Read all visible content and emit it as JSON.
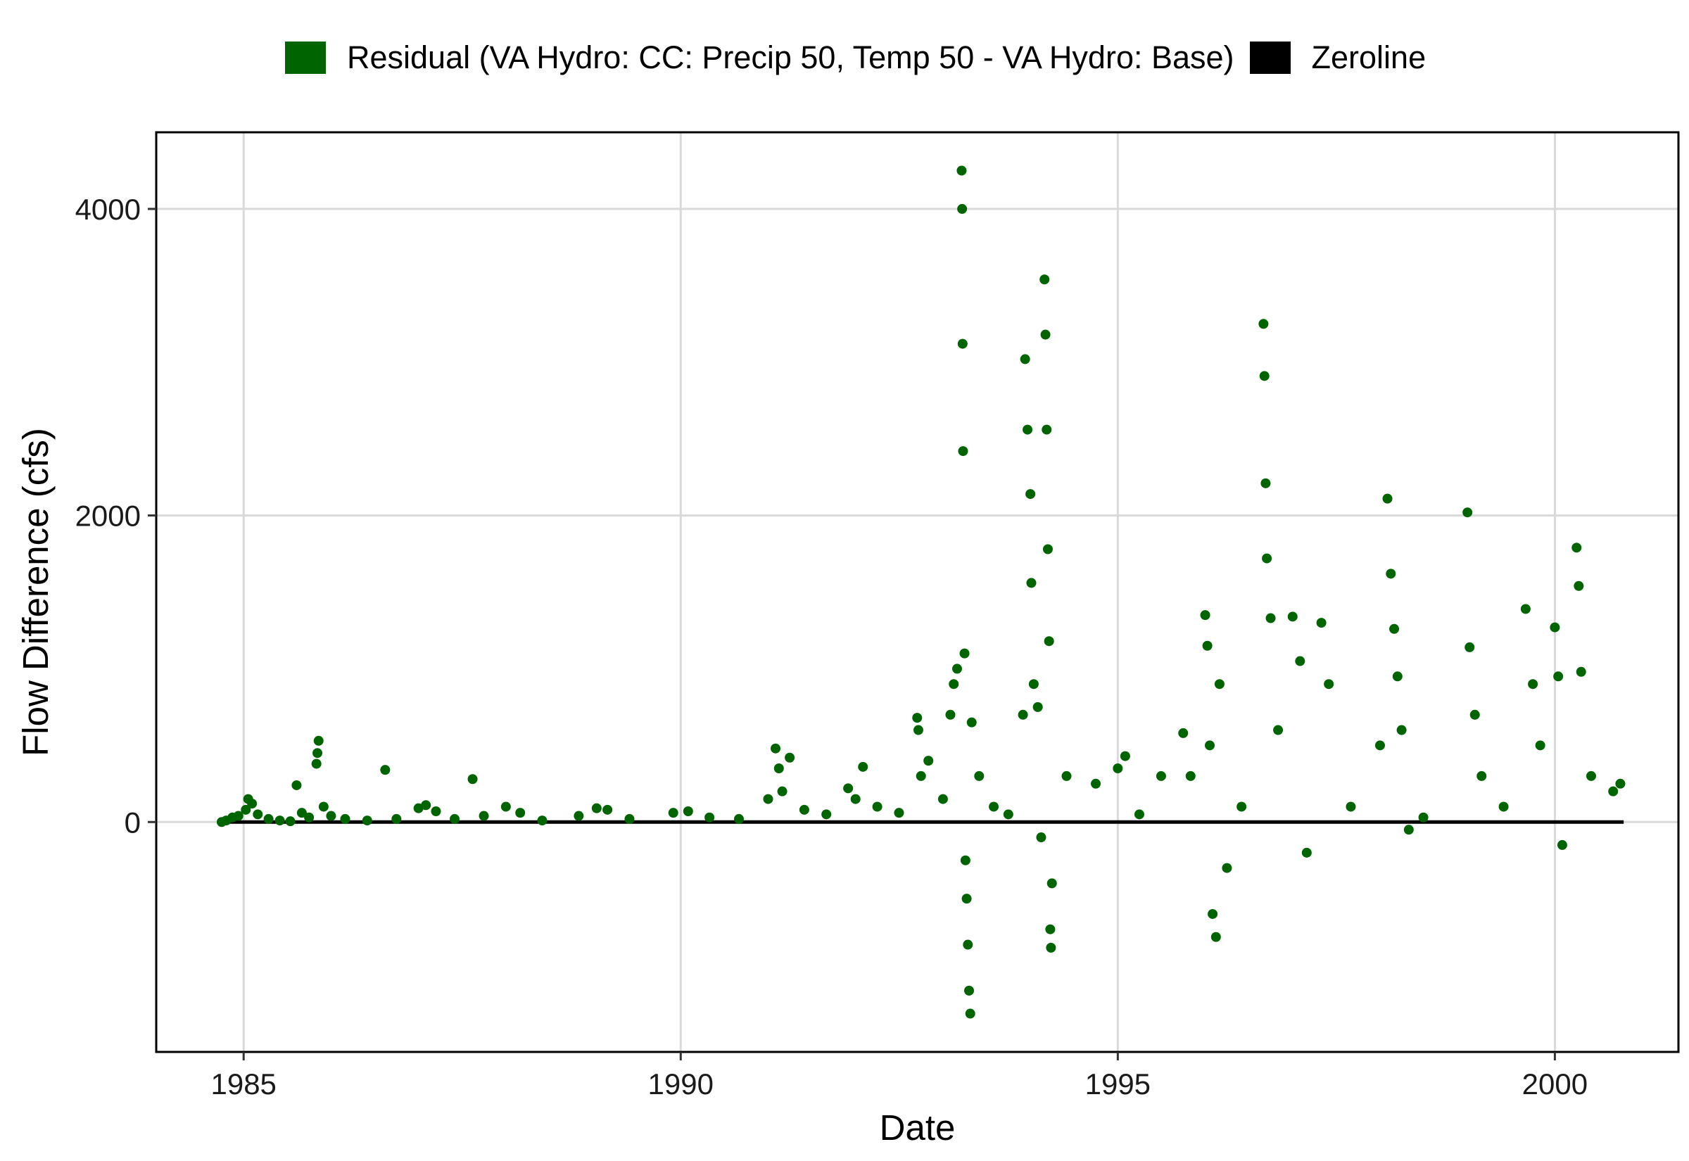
{
  "chart_data": {
    "type": "scatter",
    "title": "",
    "xlabel": "Date",
    "ylabel": "Flow Difference (cfs)",
    "xlim": [
      "1984-01-01",
      "2001-06-01"
    ],
    "ylim": [
      -1500,
      4500
    ],
    "x_ticks": [
      "1985",
      "1990",
      "1995",
      "2000"
    ],
    "y_ticks": [
      0,
      2000,
      4000
    ],
    "grid": true,
    "legend_position": "top",
    "legend": [
      {
        "label": "Residual (VA Hydro: CC: Precip 50, Temp 50 - VA Hydro: Base)",
        "color": "#006400"
      },
      {
        "label": "Zeroline",
        "color": "#000000"
      }
    ],
    "series": [
      {
        "name": "Residual (VA Hydro: CC: Precip 50, Temp 50 - VA Hydro: Base)",
        "type": "scatter",
        "color": "#006400",
        "points": [
          [
            "1984-10-01",
            0
          ],
          [
            "1984-10-20",
            10
          ],
          [
            "1984-11-15",
            30
          ],
          [
            "1984-12-10",
            40
          ],
          [
            "1985-01-10",
            80
          ],
          [
            "1985-01-20",
            150
          ],
          [
            "1985-02-05",
            120
          ],
          [
            "1985-03-01",
            50
          ],
          [
            "1985-04-15",
            20
          ],
          [
            "1985-06-01",
            10
          ],
          [
            "1985-07-15",
            5
          ],
          [
            "1985-08-10",
            240
          ],
          [
            "1985-09-01",
            60
          ],
          [
            "1985-10-01",
            30
          ],
          [
            "1985-11-01",
            380
          ],
          [
            "1985-11-05",
            450
          ],
          [
            "1985-11-10",
            530
          ],
          [
            "1985-12-01",
            100
          ],
          [
            "1986-01-01",
            40
          ],
          [
            "1986-03-01",
            20
          ],
          [
            "1986-06-01",
            10
          ],
          [
            "1986-08-15",
            340
          ],
          [
            "1986-10-01",
            20
          ],
          [
            "1987-01-01",
            90
          ],
          [
            "1987-02-01",
            110
          ],
          [
            "1987-03-15",
            70
          ],
          [
            "1987-06-01",
            20
          ],
          [
            "1987-08-15",
            280
          ],
          [
            "1987-10-01",
            40
          ],
          [
            "1988-01-01",
            100
          ],
          [
            "1988-03-01",
            60
          ],
          [
            "1988-06-01",
            10
          ],
          [
            "1988-11-01",
            40
          ],
          [
            "1989-01-15",
            90
          ],
          [
            "1989-03-01",
            80
          ],
          [
            "1989-06-01",
            20
          ],
          [
            "1989-12-01",
            60
          ],
          [
            "1990-02-01",
            70
          ],
          [
            "1990-05-01",
            30
          ],
          [
            "1990-09-01",
            20
          ],
          [
            "1991-01-01",
            150
          ],
          [
            "1991-02-01",
            480
          ],
          [
            "1991-02-15",
            350
          ],
          [
            "1991-03-01",
            200
          ],
          [
            "1991-04-01",
            420
          ],
          [
            "1991-06-01",
            80
          ],
          [
            "1991-09-01",
            50
          ],
          [
            "1991-12-01",
            220
          ],
          [
            "1992-01-01",
            150
          ],
          [
            "1992-02-01",
            360
          ],
          [
            "1992-04-01",
            100
          ],
          [
            "1992-07-01",
            60
          ],
          [
            "1992-09-15",
            680
          ],
          [
            "1992-09-20",
            600
          ],
          [
            "1992-10-01",
            300
          ],
          [
            "1992-11-01",
            400
          ],
          [
            "1993-01-01",
            150
          ],
          [
            "1993-02-01",
            700
          ],
          [
            "1993-02-15",
            900
          ],
          [
            "1993-03-01",
            1000
          ],
          [
            "1993-03-20",
            4250
          ],
          [
            "1993-03-22",
            4000
          ],
          [
            "1993-03-24",
            3120
          ],
          [
            "1993-03-26",
            2420
          ],
          [
            "1993-04-01",
            1100
          ],
          [
            "1993-04-05",
            -250
          ],
          [
            "1993-04-10",
            -500
          ],
          [
            "1993-04-15",
            -800
          ],
          [
            "1993-04-20",
            -1100
          ],
          [
            "1993-04-25",
            -1250
          ],
          [
            "1993-05-01",
            650
          ],
          [
            "1993-06-01",
            300
          ],
          [
            "1993-08-01",
            100
          ],
          [
            "1993-10-01",
            50
          ],
          [
            "1993-12-01",
            700
          ],
          [
            "1993-12-10",
            3020
          ],
          [
            "1993-12-20",
            2560
          ],
          [
            "1994-01-01",
            2140
          ],
          [
            "1994-01-05",
            1560
          ],
          [
            "1994-01-15",
            900
          ],
          [
            "1994-02-01",
            750
          ],
          [
            "1994-02-15",
            -100
          ],
          [
            "1994-03-01",
            3540
          ],
          [
            "1994-03-05",
            3180
          ],
          [
            "1994-03-10",
            2560
          ],
          [
            "1994-03-15",
            1780
          ],
          [
            "1994-03-20",
            1180
          ],
          [
            "1994-03-25",
            -700
          ],
          [
            "1994-03-28",
            -820
          ],
          [
            "1994-04-01",
            -400
          ],
          [
            "1994-06-01",
            300
          ],
          [
            "1994-10-01",
            250
          ],
          [
            "1995-01-01",
            350
          ],
          [
            "1995-02-01",
            430
          ],
          [
            "1995-04-01",
            50
          ],
          [
            "1995-07-01",
            300
          ],
          [
            "1995-10-01",
            580
          ],
          [
            "1995-11-01",
            300
          ],
          [
            "1996-01-01",
            1350
          ],
          [
            "1996-01-10",
            1150
          ],
          [
            "1996-01-20",
            500
          ],
          [
            "1996-02-01",
            -600
          ],
          [
            "1996-02-15",
            -750
          ],
          [
            "1996-03-01",
            900
          ],
          [
            "1996-04-01",
            -300
          ],
          [
            "1996-06-01",
            100
          ],
          [
            "1996-09-01",
            3250
          ],
          [
            "1996-09-05",
            2910
          ],
          [
            "1996-09-10",
            2210
          ],
          [
            "1996-09-15",
            1720
          ],
          [
            "1996-10-01",
            1330
          ],
          [
            "1996-11-01",
            600
          ],
          [
            "1997-01-01",
            1340
          ],
          [
            "1997-02-01",
            1050
          ],
          [
            "1997-03-01",
            -200
          ],
          [
            "1997-05-01",
            1300
          ],
          [
            "1997-06-01",
            900
          ],
          [
            "1997-09-01",
            100
          ],
          [
            "1998-01-01",
            500
          ],
          [
            "1998-02-01",
            2110
          ],
          [
            "1998-02-15",
            1620
          ],
          [
            "1998-03-01",
            1260
          ],
          [
            "1998-03-15",
            950
          ],
          [
            "1998-04-01",
            600
          ],
          [
            "1998-05-01",
            -50
          ],
          [
            "1998-07-01",
            30
          ],
          [
            "1999-01-01",
            2020
          ],
          [
            "1999-01-10",
            1140
          ],
          [
            "1999-02-01",
            700
          ],
          [
            "1999-03-01",
            300
          ],
          [
            "1999-06-01",
            100
          ],
          [
            "1999-09-01",
            1390
          ],
          [
            "1999-10-01",
            900
          ],
          [
            "1999-11-01",
            500
          ],
          [
            "2000-01-01",
            1270
          ],
          [
            "2000-01-15",
            950
          ],
          [
            "2000-02-01",
            -150
          ],
          [
            "2000-04-01",
            1790
          ],
          [
            "2000-04-10",
            1540
          ],
          [
            "2000-04-20",
            980
          ],
          [
            "2000-06-01",
            300
          ],
          [
            "2000-09-01",
            200
          ],
          [
            "2000-10-01",
            250
          ]
        ]
      },
      {
        "name": "Zeroline",
        "type": "line",
        "color": "#000000",
        "points": [
          [
            "1984-09-15",
            0
          ],
          [
            "2000-10-15",
            0
          ]
        ]
      }
    ]
  }
}
